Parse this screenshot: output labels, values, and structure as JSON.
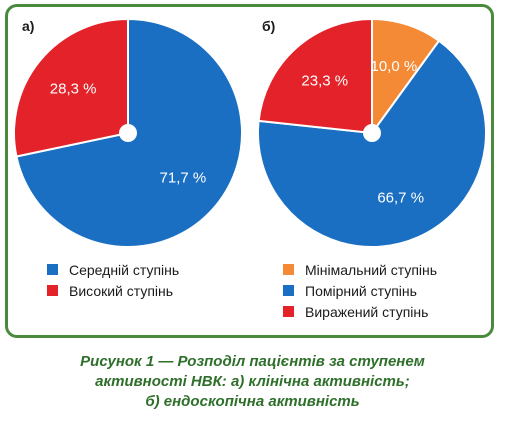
{
  "chart_data": [
    {
      "type": "pie",
      "panel": "а)",
      "slices": [
        {
          "label": "Середній ступінь",
          "value": 71.7,
          "value_label": "71,7 %",
          "color": "#1a6fc2"
        },
        {
          "label": "Високий ступінь",
          "value": 28.3,
          "value_label": "28,3 %",
          "color": "#e32229"
        }
      ]
    },
    {
      "type": "pie",
      "panel": "б)",
      "slices": [
        {
          "label": "Мінімальний ступінь",
          "value": 10.0,
          "value_label": "10,0 %",
          "color": "#f58a36"
        },
        {
          "label": "Помірний ступінь",
          "value": 66.7,
          "value_label": "66,7 %",
          "color": "#1a6fc2"
        },
        {
          "label": "Виражений ступінь",
          "value": 23.3,
          "value_label": "23,3 %",
          "color": "#e32229"
        }
      ]
    }
  ],
  "caption": {
    "line1": "Рисунок 1 — Розподіл пацієнтів за ступенем",
    "line2": "активності НВК: а) клінічна активність;",
    "line3": "б) ендоскопічна активність"
  },
  "colors": {
    "frame": "#4a8a3c",
    "caption": "#2e6f2a",
    "label_text": "#ffffff"
  }
}
